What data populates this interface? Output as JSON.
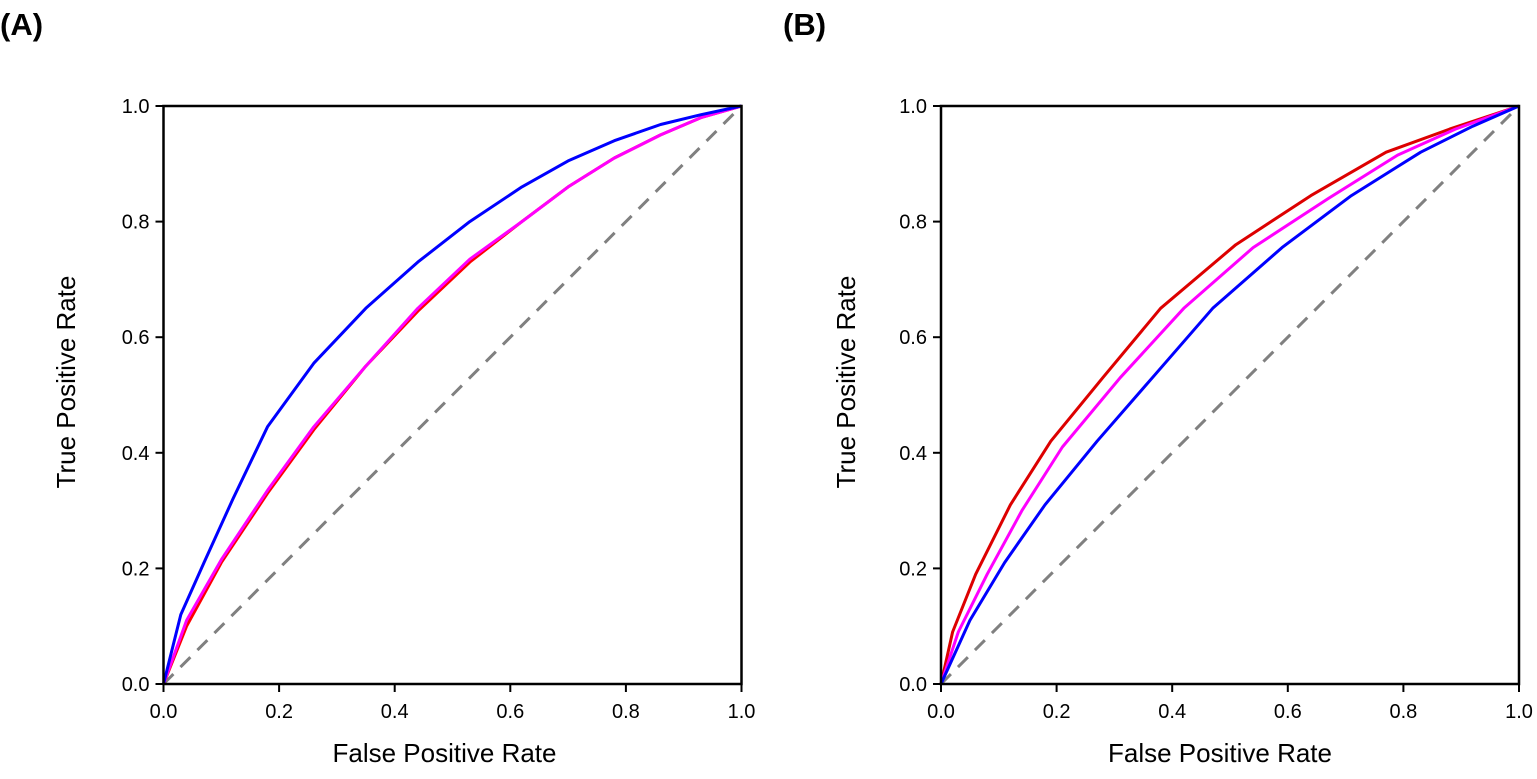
{
  "chart_data": [
    {
      "type": "line",
      "panel_label": "(A)",
      "title": "",
      "xlabel": "False Positive Rate",
      "ylabel": "True Positive Rate",
      "xlim": [
        0,
        1
      ],
      "ylim": [
        0,
        1
      ],
      "x_ticks": [
        "0.0",
        "0.2",
        "0.4",
        "0.6",
        "0.8",
        "1.0"
      ],
      "y_ticks": [
        "0.0",
        "0.2",
        "0.4",
        "0.6",
        "0.8",
        "1.0"
      ],
      "grid": false,
      "legend": "none",
      "series": [
        {
          "color": "#ff0000",
          "dashed": false,
          "x": [
            0.0,
            0.04,
            0.1,
            0.18,
            0.26,
            0.35,
            0.44,
            0.53,
            0.62,
            0.7,
            0.78,
            0.86,
            0.93,
            1.0
          ],
          "y": [
            0.0,
            0.1,
            0.21,
            0.33,
            0.44,
            0.55,
            0.645,
            0.73,
            0.8,
            0.86,
            0.91,
            0.95,
            0.98,
            1.0
          ]
        },
        {
          "color": "#ff00ff",
          "dashed": false,
          "x": [
            0.0,
            0.04,
            0.1,
            0.18,
            0.26,
            0.35,
            0.44,
            0.53,
            0.62,
            0.7,
            0.78,
            0.86,
            0.93,
            1.0
          ],
          "y": [
            0.0,
            0.11,
            0.215,
            0.335,
            0.445,
            0.55,
            0.65,
            0.735,
            0.8,
            0.86,
            0.91,
            0.95,
            0.98,
            1.0
          ]
        },
        {
          "color": "#0000ff",
          "dashed": false,
          "x": [
            0.0,
            0.03,
            0.07,
            0.12,
            0.18,
            0.26,
            0.35,
            0.44,
            0.53,
            0.62,
            0.7,
            0.78,
            0.86,
            0.93,
            1.0
          ],
          "y": [
            0.0,
            0.12,
            0.21,
            0.32,
            0.445,
            0.555,
            0.65,
            0.73,
            0.8,
            0.86,
            0.905,
            0.94,
            0.968,
            0.985,
            1.0
          ]
        },
        {
          "color": "#808080",
          "dashed": true,
          "x": [
            0.0,
            1.0
          ],
          "y": [
            0.0,
            1.0
          ]
        }
      ]
    },
    {
      "type": "line",
      "panel_label": "(B)",
      "title": "",
      "xlabel": "False Positive Rate",
      "ylabel": "True Positive Rate",
      "xlim": [
        0,
        1
      ],
      "ylim": [
        0,
        1
      ],
      "x_ticks": [
        "0.0",
        "0.2",
        "0.4",
        "0.6",
        "0.8",
        "1.0"
      ],
      "y_ticks": [
        "0.0",
        "0.2",
        "0.4",
        "0.6",
        "0.8",
        "1.0"
      ],
      "grid": false,
      "legend": "none",
      "series": [
        {
          "color": "#dd0000",
          "dashed": false,
          "x": [
            0.0,
            0.02,
            0.06,
            0.12,
            0.19,
            0.28,
            0.38,
            0.51,
            0.64,
            0.77,
            0.88,
            1.0
          ],
          "y": [
            0.0,
            0.09,
            0.19,
            0.31,
            0.42,
            0.53,
            0.65,
            0.76,
            0.845,
            0.92,
            0.96,
            1.0
          ]
        },
        {
          "color": "#ff00ff",
          "dashed": false,
          "x": [
            0.0,
            0.03,
            0.08,
            0.14,
            0.21,
            0.31,
            0.42,
            0.54,
            0.67,
            0.79,
            0.89,
            1.0
          ],
          "y": [
            0.0,
            0.09,
            0.19,
            0.3,
            0.41,
            0.53,
            0.65,
            0.755,
            0.84,
            0.915,
            0.96,
            1.0
          ]
        },
        {
          "color": "#0000ff",
          "dashed": false,
          "x": [
            0.0,
            0.05,
            0.11,
            0.18,
            0.27,
            0.37,
            0.47,
            0.59,
            0.71,
            0.83,
            0.92,
            1.0
          ],
          "y": [
            0.0,
            0.11,
            0.21,
            0.31,
            0.42,
            0.535,
            0.65,
            0.755,
            0.845,
            0.92,
            0.965,
            1.0
          ]
        },
        {
          "color": "#808080",
          "dashed": true,
          "x": [
            0.0,
            1.0
          ],
          "y": [
            0.0,
            1.0
          ]
        }
      ]
    }
  ]
}
